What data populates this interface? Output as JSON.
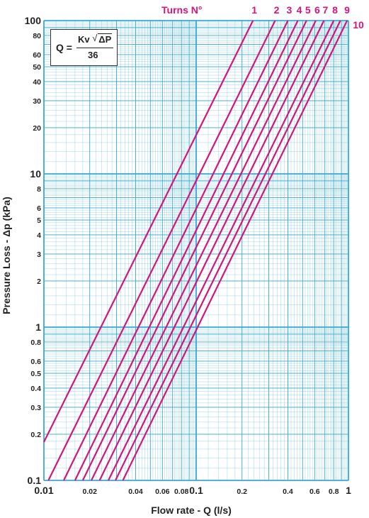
{
  "chart_data": {
    "type": "line",
    "xlabel": "Flow rate - Q (l/s)",
    "ylabel": "Pressure Loss  - Δp (kPa)",
    "x_scale": "log",
    "y_scale": "log",
    "xlim": [
      0.01,
      1
    ],
    "ylim": [
      0.1,
      100
    ],
    "grid": true,
    "x_ticks": [
      {
        "v": 0.01,
        "label": "0.01",
        "major": true
      },
      {
        "v": 0.02,
        "label": "0.02",
        "major": false
      },
      {
        "v": 0.04,
        "label": "0.04",
        "major": false
      },
      {
        "v": 0.06,
        "label": "0.06",
        "major": false
      },
      {
        "v": 0.08,
        "label": "0.08",
        "major": false
      },
      {
        "v": 0.1,
        "label": "0.1",
        "major": true
      },
      {
        "v": 0.2,
        "label": "0.2",
        "major": false
      },
      {
        "v": 0.4,
        "label": "0.4",
        "major": false
      },
      {
        "v": 0.6,
        "label": "0.6",
        "major": false
      },
      {
        "v": 0.8,
        "label": "0.8",
        "major": false
      },
      {
        "v": 1,
        "label": "1",
        "major": true
      }
    ],
    "y_ticks": [
      {
        "v": 0.1,
        "label": "0.1",
        "major": true
      },
      {
        "v": 0.2,
        "label": "0.2",
        "major": false
      },
      {
        "v": 0.3,
        "label": "0.3",
        "major": false
      },
      {
        "v": 0.4,
        "label": "0.4",
        "major": false
      },
      {
        "v": 0.5,
        "label": "0.5",
        "major": false
      },
      {
        "v": 0.6,
        "label": "0.6",
        "major": false
      },
      {
        "v": 0.8,
        "label": "0.8",
        "major": false
      },
      {
        "v": 1,
        "label": "1",
        "major": true
      },
      {
        "v": 2,
        "label": "2",
        "major": false
      },
      {
        "v": 3,
        "label": "3",
        "major": false
      },
      {
        "v": 4,
        "label": "4",
        "major": false
      },
      {
        "v": 5,
        "label": "5",
        "major": false
      },
      {
        "v": 6,
        "label": "6",
        "major": false
      },
      {
        "v": 8,
        "label": "8",
        "major": false
      },
      {
        "v": 10,
        "label": "10",
        "major": true
      },
      {
        "v": 20,
        "label": "20",
        "major": false
      },
      {
        "v": 30,
        "label": "30",
        "major": false
      },
      {
        "v": 40,
        "label": "40",
        "major": false
      },
      {
        "v": 50,
        "label": "50",
        "major": false
      },
      {
        "v": 60,
        "label": "60",
        "major": false
      },
      {
        "v": 80,
        "label": "80",
        "major": false
      },
      {
        "v": 100,
        "label": "100",
        "major": true
      }
    ],
    "legend_title": "Turns N°",
    "series": [
      {
        "name": "1",
        "x": [
          0.01,
          0.236
        ],
        "y": [
          0.178,
          100
        ]
      },
      {
        "name": "2",
        "x": [
          0.0107,
          0.33
        ],
        "y": [
          0.1,
          100
        ]
      },
      {
        "name": "3",
        "x": [
          0.0135,
          0.4
        ],
        "y": [
          0.1,
          100
        ]
      },
      {
        "name": "4",
        "x": [
          0.016,
          0.465
        ],
        "y": [
          0.1,
          100
        ]
      },
      {
        "name": "5",
        "x": [
          0.018,
          0.53
        ],
        "y": [
          0.1,
          100
        ]
      },
      {
        "name": "6",
        "x": [
          0.0205,
          0.61
        ],
        "y": [
          0.1,
          100
        ]
      },
      {
        "name": "7",
        "x": [
          0.0232,
          0.69
        ],
        "y": [
          0.1,
          100
        ]
      },
      {
        "name": "8",
        "x": [
          0.0265,
          0.8
        ],
        "y": [
          0.1,
          100
        ]
      },
      {
        "name": "9",
        "x": [
          0.0295,
          0.885
        ],
        "y": [
          0.1,
          100
        ]
      },
      {
        "name": "10",
        "x": [
          0.033,
          0.98
        ],
        "y": [
          0.1,
          100
        ]
      }
    ],
    "line_color": "#d3157e",
    "grid_color": "#3aa9d2",
    "annotation": {
      "lhs": "Q =",
      "kv": "Kv",
      "sqrt_sign": "√",
      "radicand": "ΔP",
      "denominator": "36"
    }
  }
}
